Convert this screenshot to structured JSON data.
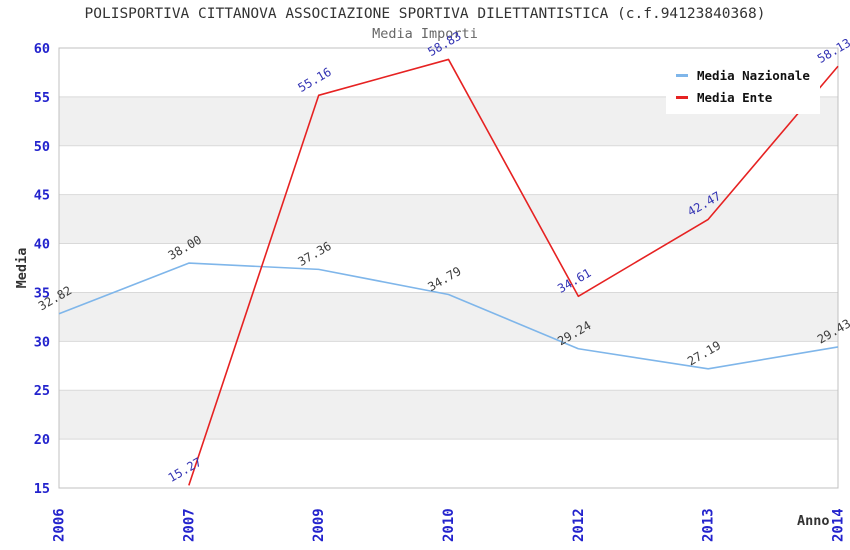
{
  "chart_data": {
    "type": "line",
    "title": "POLISPORTIVA CITTANOVA ASSOCIAZIONE SPORTIVA DILETTANTISTICA (c.f.94123840368)",
    "subtitle": "Media Importi",
    "xlabel": "Anno",
    "ylabel": "Media",
    "categories": [
      "2006",
      "2007",
      "2009",
      "2010",
      "2012",
      "2013",
      "2014"
    ],
    "series": [
      {
        "name": "Media Nazionale",
        "color": "#7fb6ea",
        "label_color": "#3d3d3d",
        "values": [
          32.82,
          38.0,
          37.36,
          34.79,
          29.24,
          27.19,
          29.43
        ]
      },
      {
        "name": "Media Ente",
        "color": "#e62222",
        "label_color": "#3333b3",
        "values": [
          null,
          15.27,
          55.16,
          58.83,
          34.61,
          42.47,
          58.13
        ]
      }
    ],
    "ylim": [
      15,
      60
    ],
    "ytick_step": 5,
    "yticks": [
      15,
      20,
      25,
      30,
      35,
      40,
      45,
      50,
      55,
      60
    ],
    "grid": true,
    "legend_position": "top-right",
    "colors": {
      "axis_tick": "#2323cd",
      "grid": "#d9d9d9",
      "band": "#f0f0f0",
      "border": "#c0c0c0",
      "title": "#333333",
      "subtitle": "#666666",
      "background": "#ffffff"
    }
  }
}
